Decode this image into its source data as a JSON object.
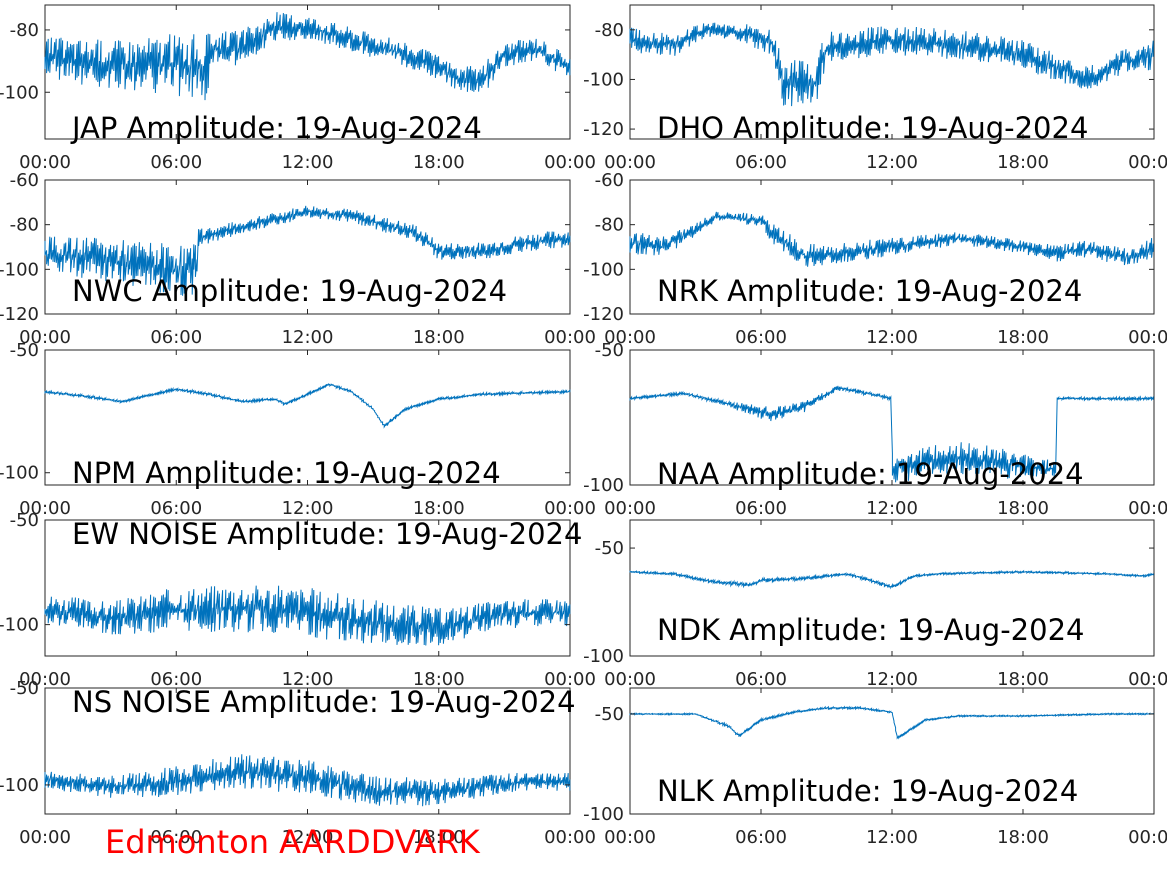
{
  "footer": {
    "text": "Edmonton AARDDVARK",
    "color": "#ff0000"
  },
  "line_color": "#0072bd",
  "chart_data": [
    {
      "type": "line",
      "title": "JAP Amplitude: 19-Aug-2024",
      "x": [
        "00:00",
        "03:00",
        "06:00",
        "07:30",
        "07:31",
        "09:00",
        "10:30",
        "12:00",
        "13:30",
        "15:00",
        "16:30",
        "18:00",
        "19:00",
        "20:00",
        "21:00",
        "22:30",
        "24:00"
      ],
      "y": [
        -89,
        -91,
        -91,
        -93,
        -86,
        -86,
        -79,
        -79,
        -82,
        -85,
        -88,
        -92,
        -96,
        -96,
        -88,
        -86,
        -92
      ],
      "spread": [
        7,
        8,
        10,
        12,
        5,
        6,
        5,
        4,
        4,
        4,
        4,
        4,
        4,
        5,
        4,
        4,
        4
      ],
      "xticks": [
        "00:00",
        "06:00",
        "12:00",
        "18:00",
        "00:00"
      ],
      "yticks": [
        -80,
        -100
      ],
      "ylim": [
        -115,
        -72
      ]
    },
    {
      "type": "line",
      "title": "DHO Amplitude: 19-Aug-2024",
      "x": [
        "00:00",
        "02:00",
        "03:30",
        "05:00",
        "06:30",
        "07:00",
        "08:30",
        "09:00",
        "12:00",
        "15:00",
        "18:00",
        "21:00",
        "22:30",
        "24:00"
      ],
      "y": [
        -84,
        -86,
        -80,
        -81,
        -85,
        -101,
        -101,
        -87,
        -84,
        -86,
        -90,
        -100,
        -93,
        -90
      ],
      "spread": [
        5,
        5,
        3,
        4,
        5,
        10,
        10,
        6,
        6,
        6,
        6,
        5,
        5,
        6
      ],
      "xticks": [
        "00:00",
        "06:00",
        "12:00",
        "18:00",
        "00:00"
      ],
      "yticks": [
        -80,
        -100,
        -120
      ],
      "ylim": [
        -124,
        -70
      ]
    },
    {
      "type": "line",
      "title": "NWC Amplitude: 19-Aug-2024",
      "x": [
        "00:00",
        "03:00",
        "06:00",
        "07:00",
        "07:01",
        "09:00",
        "12:00",
        "14:00",
        "17:00",
        "18:00",
        "20:00",
        "22:00",
        "24:00"
      ],
      "y": [
        -93,
        -96,
        -100,
        -100,
        -86,
        -81,
        -74,
        -76,
        -84,
        -92,
        -92,
        -88,
        -86
      ],
      "spread": [
        8,
        10,
        12,
        12,
        4,
        3,
        3,
        3,
        4,
        4,
        4,
        4,
        4
      ],
      "xticks": [
        "00:00",
        "06:00",
        "12:00",
        "18:00",
        "00:00"
      ],
      "yticks": [
        -60,
        -80,
        -100,
        -120
      ],
      "ylim": [
        -120,
        -60
      ]
    },
    {
      "type": "line",
      "title": "NRK Amplitude: 19-Aug-2024",
      "x": [
        "00:00",
        "01:30",
        "03:00",
        "04:00",
        "06:00",
        "06:30",
        "08:00",
        "09:00",
        "12:00",
        "15:00",
        "18:00",
        "19:30",
        "21:00",
        "23:00",
        "24:00"
      ],
      "y": [
        -88,
        -90,
        -82,
        -76,
        -78,
        -84,
        -94,
        -93,
        -90,
        -86,
        -90,
        -93,
        -91,
        -95,
        -90
      ],
      "spread": [
        5,
        5,
        3,
        2,
        3,
        5,
        6,
        5,
        4,
        3,
        3,
        4,
        4,
        4,
        5
      ],
      "xticks": [
        "00:00",
        "06:00",
        "12:00",
        "18:00",
        "00:00"
      ],
      "yticks": [
        -60,
        -80,
        -100,
        -120
      ],
      "ylim": [
        -120,
        -60
      ]
    },
    {
      "type": "line",
      "title": "NPM Amplitude: 19-Aug-2024",
      "x": [
        "00:00",
        "02:00",
        "03:30",
        "05:00",
        "06:00",
        "07:30",
        "09:00",
        "10:30",
        "11:00",
        "12:00",
        "13:00",
        "14:00",
        "15:00",
        "15:30",
        "16:30",
        "18:00",
        "20:00",
        "24:00"
      ],
      "y": [
        -67,
        -69,
        -71,
        -68,
        -66,
        -68,
        -71,
        -70,
        -72,
        -68,
        -64,
        -67,
        -74,
        -81,
        -74,
        -70,
        -68,
        -67
      ],
      "spread": [
        0.6,
        0.6,
        0.6,
        0.6,
        0.6,
        0.6,
        0.6,
        0.6,
        0.8,
        0.6,
        0.6,
        0.6,
        0.6,
        1,
        0.6,
        0.6,
        0.6,
        0.6
      ],
      "xticks": [
        "00:00",
        "06:00",
        "12:00",
        "18:00",
        "00:00"
      ],
      "yticks": [
        -50,
        -100
      ],
      "ylim": [
        -105,
        -50
      ]
    },
    {
      "type": "line",
      "title": "NAA Amplitude: 19-Aug-2024",
      "x": [
        "00:00",
        "02:30",
        "04:00",
        "05:30",
        "06:30",
        "08:00",
        "09:30",
        "11:30",
        "12:00",
        "12:01",
        "13:00",
        "15:00",
        "17:00",
        "19:00",
        "19:30",
        "19:31",
        "21:00",
        "22:30",
        "24:00"
      ],
      "y": [
        -68,
        -66,
        -69,
        -72,
        -74,
        -71,
        -64,
        -67,
        -68,
        -94,
        -92,
        -90,
        -92,
        -94,
        -94,
        -68,
        -68,
        -68,
        -68
      ],
      "spread": [
        0.6,
        0.6,
        1,
        2,
        3,
        2,
        1,
        0.8,
        0.6,
        6,
        6,
        6,
        6,
        4,
        4,
        0.6,
        0.6,
        0.6,
        0.6
      ],
      "xticks": [
        "00:00",
        "06:00",
        "12:00",
        "18:00",
        "00:00"
      ],
      "yticks": [
        -50,
        -100
      ],
      "ylim": [
        -100,
        -50
      ]
    },
    {
      "type": "line",
      "title": "EW NOISE Amplitude: 19-Aug-2024",
      "x": [
        "00:00",
        "03:00",
        "06:00",
        "09:00",
        "12:00",
        "15:00",
        "18:00",
        "21:00",
        "24:00"
      ],
      "y": [
        -93,
        -97,
        -93,
        -92,
        -94,
        -99,
        -101,
        -95,
        -94
      ],
      "spread": [
        8,
        8,
        11,
        12,
        12,
        11,
        9,
        7,
        7
      ],
      "xticks": [
        "00:00",
        "06:00",
        "12:00",
        "18:00",
        "00:00"
      ],
      "yticks": [
        -50,
        -100
      ],
      "ylim": [
        -115,
        -50
      ]
    },
    {
      "type": "line",
      "title": "NDK Amplitude: 19-Aug-2024",
      "x": [
        "00:00",
        "02:00",
        "04:00",
        "05:30",
        "06:00",
        "08:00",
        "10:00",
        "11:00",
        "12:00",
        "13:00",
        "14:00",
        "18:00",
        "22:00",
        "23:30",
        "24:00"
      ],
      "y": [
        -61,
        -62,
        -66,
        -67,
        -65,
        -64,
        -62,
        -65,
        -68,
        -63,
        -62,
        -61,
        -62,
        -63,
        -62
      ],
      "spread": [
        0.5,
        0.6,
        1,
        1.2,
        1,
        1,
        0.8,
        1,
        1,
        0.6,
        0.5,
        0.5,
        0.5,
        0.5,
        0.5
      ],
      "xticks": [
        "00:00",
        "06:00",
        "12:00",
        "18:00",
        "00:00"
      ],
      "yticks": [
        -50,
        -100
      ],
      "ylim": [
        -100,
        -37
      ]
    },
    {
      "type": "line",
      "title": "NS NOISE Amplitude: 19-Aug-2024",
      "x": [
        "00:00",
        "03:00",
        "06:00",
        "09:00",
        "12:00",
        "15:00",
        "18:00",
        "21:00",
        "24:00"
      ],
      "y": [
        -97,
        -101,
        -98,
        -93,
        -96,
        -103,
        -104,
        -99,
        -98
      ],
      "spread": [
        5,
        6,
        8,
        9,
        9,
        8,
        7,
        5,
        5
      ],
      "xticks": [
        "00:00",
        "06:00",
        "12:00",
        "18:00",
        "00:00"
      ],
      "yticks": [
        -50,
        -100
      ],
      "ylim": [
        -115,
        -50
      ]
    },
    {
      "type": "line",
      "title": "NLK Amplitude: 19-Aug-2024",
      "x": [
        "00:00",
        "03:00",
        "04:30",
        "05:00",
        "06:00",
        "07:30",
        "09:00",
        "10:30",
        "12:00",
        "12:15",
        "13:30",
        "15:00",
        "18:00",
        "22:00",
        "24:00"
      ],
      "y": [
        -50,
        -50,
        -56,
        -61,
        -53,
        -49,
        -47,
        -47,
        -49,
        -62,
        -53,
        -51,
        -51,
        -50,
        -50
      ],
      "spread": [
        0.4,
        0.4,
        0.8,
        1,
        0.8,
        0.6,
        0.6,
        0.6,
        0.6,
        1,
        0.5,
        0.4,
        0.4,
        0.4,
        0.4
      ],
      "xticks": [
        "00:00",
        "06:00",
        "12:00",
        "18:00",
        "00:00"
      ],
      "yticks": [
        -50,
        -100
      ],
      "ylim": [
        -100,
        -37
      ]
    }
  ]
}
